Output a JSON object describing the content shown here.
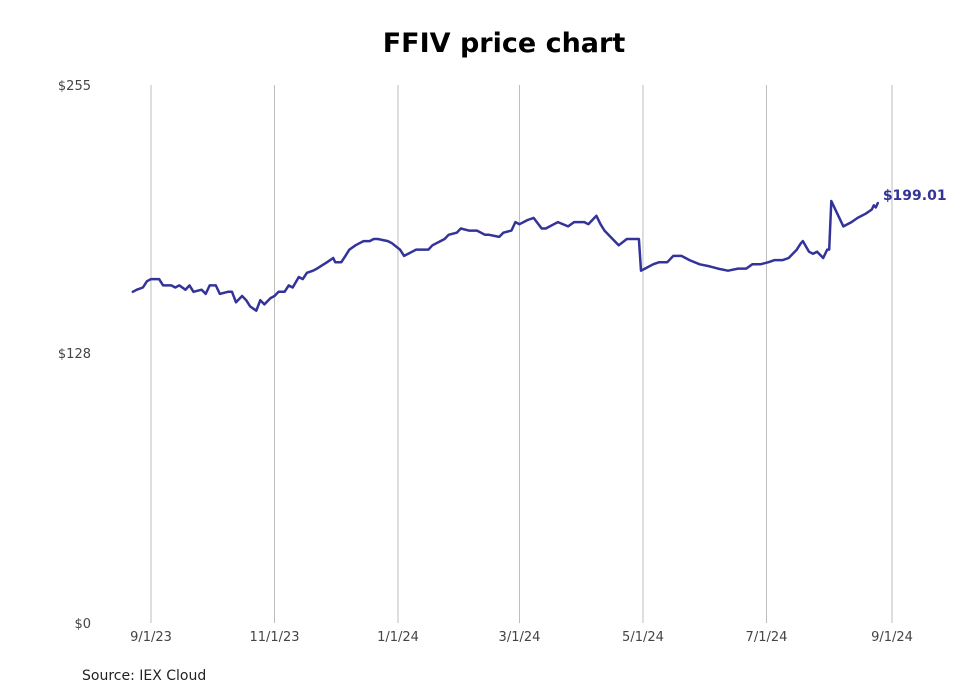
{
  "chart_data": {
    "type": "line",
    "title": "FFIV price chart",
    "source": "Source: IEX Cloud",
    "y_ticks": [
      {
        "value": 0,
        "label": "$0"
      },
      {
        "value": 128,
        "label": "$128"
      },
      {
        "value": 255,
        "label": "$255"
      }
    ],
    "ylim": [
      0,
      255
    ],
    "x_ticks": [
      "2023-09-01",
      "2023-11-01",
      "2024-01-01",
      "2024-03-01",
      "2024-05-01",
      "2024-07-01",
      "2024-09-01"
    ],
    "x_tick_labels": [
      "9/1/23",
      "11/1/23",
      "1/1/24",
      "3/1/24",
      "5/1/24",
      "7/1/24",
      "9/1/24"
    ],
    "xlim": [
      "2023-08-23",
      "2024-09-03"
    ],
    "grid": "vertical",
    "line_color": "#333399",
    "end_label": "$199.01",
    "series": [
      {
        "points": [
          [
            "2023-08-23",
            157
          ],
          [
            "2023-08-25",
            158
          ],
          [
            "2023-08-28",
            159
          ],
          [
            "2023-08-30",
            162
          ],
          [
            "2023-09-01",
            163
          ],
          [
            "2023-09-05",
            163
          ],
          [
            "2023-09-07",
            160
          ],
          [
            "2023-09-11",
            160
          ],
          [
            "2023-09-13",
            159
          ],
          [
            "2023-09-15",
            160
          ],
          [
            "2023-09-18",
            158
          ],
          [
            "2023-09-20",
            160
          ],
          [
            "2023-09-22",
            157
          ],
          [
            "2023-09-26",
            158
          ],
          [
            "2023-09-28",
            156
          ],
          [
            "2023-09-30",
            160
          ],
          [
            "2023-10-03",
            160
          ],
          [
            "2023-10-05",
            156
          ],
          [
            "2023-10-09",
            157
          ],
          [
            "2023-10-11",
            157
          ],
          [
            "2023-10-13",
            152
          ],
          [
            "2023-10-16",
            155
          ],
          [
            "2023-10-18",
            153
          ],
          [
            "2023-10-20",
            150
          ],
          [
            "2023-10-23",
            148
          ],
          [
            "2023-10-25",
            153
          ],
          [
            "2023-10-27",
            151
          ],
          [
            "2023-10-30",
            154
          ],
          [
            "2023-11-01",
            155
          ],
          [
            "2023-11-03",
            157
          ],
          [
            "2023-11-06",
            157
          ],
          [
            "2023-11-08",
            160
          ],
          [
            "2023-11-10",
            159
          ],
          [
            "2023-11-13",
            164
          ],
          [
            "2023-11-15",
            163
          ],
          [
            "2023-11-17",
            166
          ],
          [
            "2023-11-20",
            167
          ],
          [
            "2023-11-22",
            168
          ],
          [
            "2023-11-27",
            171
          ],
          [
            "2023-11-30",
            173
          ],
          [
            "2023-12-01",
            171
          ],
          [
            "2023-12-04",
            171
          ],
          [
            "2023-12-06",
            174
          ],
          [
            "2023-12-08",
            177
          ],
          [
            "2023-12-11",
            179
          ],
          [
            "2023-12-13",
            180
          ],
          [
            "2023-12-15",
            181
          ],
          [
            "2023-12-18",
            181
          ],
          [
            "2023-12-20",
            182
          ],
          [
            "2023-12-22",
            182
          ],
          [
            "2023-12-27",
            181
          ],
          [
            "2023-12-29",
            180
          ],
          [
            "2024-01-02",
            177
          ],
          [
            "2024-01-04",
            174
          ],
          [
            "2024-01-08",
            176
          ],
          [
            "2024-01-10",
            177
          ],
          [
            "2024-01-12",
            177
          ],
          [
            "2024-01-16",
            177
          ],
          [
            "2024-01-18",
            179
          ],
          [
            "2024-01-22",
            181
          ],
          [
            "2024-01-24",
            182
          ],
          [
            "2024-01-26",
            184
          ],
          [
            "2024-01-30",
            185
          ],
          [
            "2024-02-01",
            187
          ],
          [
            "2024-02-05",
            186
          ],
          [
            "2024-02-07",
            186
          ],
          [
            "2024-02-09",
            186
          ],
          [
            "2024-02-13",
            184
          ],
          [
            "2024-02-15",
            184
          ],
          [
            "2024-02-20",
            183
          ],
          [
            "2024-02-22",
            185
          ],
          [
            "2024-02-26",
            186
          ],
          [
            "2024-02-28",
            190
          ],
          [
            "2024-03-01",
            189
          ],
          [
            "2024-03-05",
            191
          ],
          [
            "2024-03-08",
            192
          ],
          [
            "2024-03-12",
            187
          ],
          [
            "2024-03-14",
            187
          ],
          [
            "2024-03-18",
            189
          ],
          [
            "2024-03-20",
            190
          ],
          [
            "2024-03-25",
            188
          ],
          [
            "2024-03-28",
            190
          ],
          [
            "2024-04-02",
            190
          ],
          [
            "2024-04-04",
            189
          ],
          [
            "2024-04-08",
            193
          ],
          [
            "2024-04-10",
            189
          ],
          [
            "2024-04-12",
            186
          ],
          [
            "2024-04-16",
            182
          ],
          [
            "2024-04-19",
            179
          ],
          [
            "2024-04-23",
            182
          ],
          [
            "2024-04-26",
            182
          ],
          [
            "2024-04-29",
            182
          ],
          [
            "2024-04-30",
            167
          ],
          [
            "2024-05-02",
            168
          ],
          [
            "2024-05-06",
            170
          ],
          [
            "2024-05-09",
            171
          ],
          [
            "2024-05-13",
            171
          ],
          [
            "2024-05-16",
            174
          ],
          [
            "2024-05-20",
            174
          ],
          [
            "2024-05-22",
            173
          ],
          [
            "2024-05-24",
            172
          ],
          [
            "2024-05-29",
            170
          ],
          [
            "2024-06-03",
            169
          ],
          [
            "2024-06-07",
            168
          ],
          [
            "2024-06-12",
            167
          ],
          [
            "2024-06-17",
            168
          ],
          [
            "2024-06-21",
            168
          ],
          [
            "2024-06-24",
            170
          ],
          [
            "2024-06-28",
            170
          ],
          [
            "2024-07-02",
            171
          ],
          [
            "2024-07-05",
            172
          ],
          [
            "2024-07-09",
            172
          ],
          [
            "2024-07-12",
            173
          ],
          [
            "2024-07-16",
            177
          ],
          [
            "2024-07-18",
            180
          ],
          [
            "2024-07-19",
            181
          ],
          [
            "2024-07-22",
            176
          ],
          [
            "2024-07-24",
            175
          ],
          [
            "2024-07-26",
            176
          ],
          [
            "2024-07-29",
            173
          ],
          [
            "2024-07-31",
            177
          ],
          [
            "2024-08-01",
            177
          ],
          [
            "2024-08-02",
            200
          ],
          [
            "2024-08-05",
            194
          ],
          [
            "2024-08-08",
            188
          ],
          [
            "2024-08-12",
            190
          ],
          [
            "2024-08-15",
            192
          ],
          [
            "2024-08-19",
            194
          ],
          [
            "2024-08-22",
            196
          ],
          [
            "2024-08-23",
            198
          ],
          [
            "2024-08-24",
            197
          ],
          [
            "2024-08-25",
            199.01
          ]
        ]
      }
    ]
  }
}
